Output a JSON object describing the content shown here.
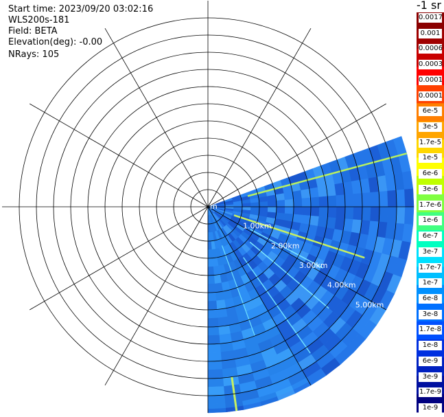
{
  "header": {
    "start_time": "Start time: 2023/09/20 03:02:16",
    "instrument": "WLS200s-181",
    "field": "Field: BETA",
    "elevation": "Elevation(deg): -0.00",
    "nrays": "NRays: 105"
  },
  "chart_data": {
    "type": "polar-ppi",
    "range_rings_km": [
      0.5,
      1,
      1.5,
      2,
      2.5,
      3,
      3.5,
      4,
      4.5,
      5,
      5.5
    ],
    "range_labels": [
      "m",
      "1.00km",
      "2.00km",
      "3.00km",
      "4.00km",
      "5.00km"
    ],
    "spoke_step_deg": 30,
    "sector_azimuth_deg": [
      70,
      180
    ],
    "max_range_km": 6.0,
    "colorbar": {
      "units": "-1 sr",
      "labels": [
        "0.0017",
        "0.001",
        "0.0006",
        "0.0003",
        "0.00017",
        "0.0001",
        "6e-5",
        "3e-5",
        "1.7e-5",
        "1e-5",
        "6e-6",
        "3e-6",
        "1.7e-6",
        "1e-6",
        "6e-7",
        "3e-7",
        "1.7e-7",
        "1e-7",
        "6e-8",
        "3e-8",
        "1.7e-8",
        "1e-8",
        "6e-9",
        "3e-9",
        "1.7e-9",
        "1e-9"
      ],
      "colors": [
        "#8b0000",
        "#a00000",
        "#c80000",
        "#ff0000",
        "#ff4000",
        "#ff7f00",
        "#ffa500",
        "#ffd700",
        "#ffff00",
        "#c0ff00",
        "#80ff40",
        "#40ff80",
        "#00ffc0",
        "#00e0ff",
        "#00bfff",
        "#0090ff",
        "#0070ff",
        "#0050ff",
        "#0030e0",
        "#0020c0",
        "#0010a0",
        "#000080"
      ]
    }
  }
}
